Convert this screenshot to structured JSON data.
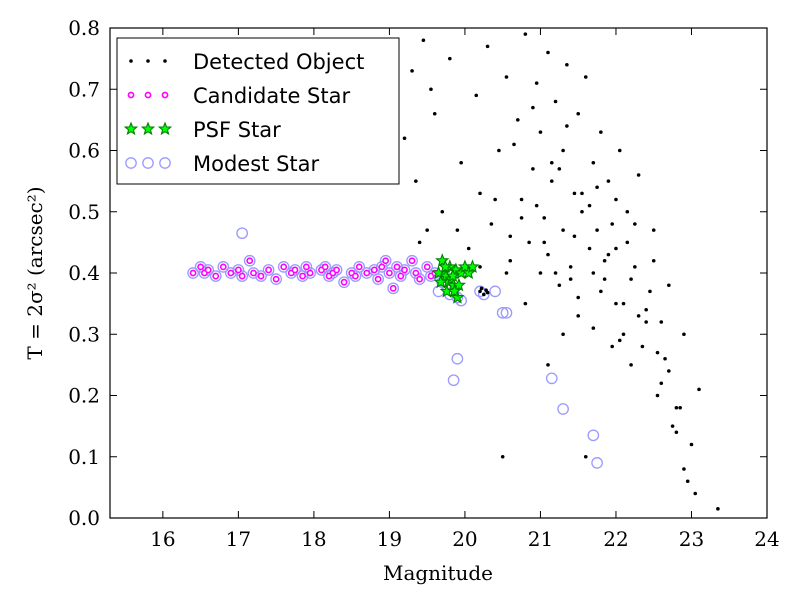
{
  "chart_data": {
    "type": "scatter",
    "xlabel": "Magnitude",
    "ylabel": "T = 2σ² (arcsec²)",
    "xlim": [
      15.3,
      24
    ],
    "ylim": [
      0.0,
      0.8
    ],
    "xticks": [
      "16",
      "17",
      "18",
      "19",
      "20",
      "21",
      "22",
      "23",
      "24"
    ],
    "yticks": [
      "0.0",
      "0.1",
      "0.2",
      "0.3",
      "0.4",
      "0.5",
      "0.6",
      "0.7",
      "0.8"
    ],
    "grid": false,
    "legend_position": "top-left",
    "colors": {
      "detected": "#000000",
      "candidate": "#ff00ff",
      "psf_edge": "#007f00",
      "psf_fill": "#00ff00",
      "modest": "#9999ff"
    },
    "series": [
      {
        "name": "Detected Object",
        "marker": "dot",
        "x": [
          19.2,
          19.3,
          19.35,
          19.45,
          19.5,
          19.55,
          19.6,
          19.7,
          19.8,
          19.95,
          20.05,
          20.15,
          20.2,
          20.3,
          20.35,
          20.45,
          20.55,
          20.6,
          20.7,
          20.75,
          20.8,
          20.85,
          20.9,
          20.95,
          21.0,
          21.0,
          21.05,
          21.1,
          21.1,
          21.15,
          21.2,
          21.25,
          21.3,
          21.3,
          21.35,
          21.4,
          21.45,
          21.5,
          21.5,
          21.55,
          21.6,
          21.65,
          21.7,
          21.7,
          21.75,
          21.8,
          21.85,
          21.9,
          21.95,
          22.0,
          22.05,
          22.1,
          22.15,
          22.2,
          22.25,
          22.3,
          22.4,
          22.5,
          22.6,
          22.7,
          22.8,
          22.9,
          23.0,
          23.1,
          23.35,
          20.4,
          20.6,
          21.3,
          20.8,
          19.4,
          19.9,
          20.2,
          20.5,
          21.1,
          21.6,
          22.0,
          22.35,
          22.55,
          22.75,
          22.95,
          21.85,
          22.1,
          22.6,
          21.55,
          21.95,
          21.25,
          20.95,
          21.45,
          21.75,
          22.2,
          22.45,
          22.65,
          22.85,
          23.05,
          20.65,
          20.9,
          21.15,
          21.35,
          21.65,
          21.9,
          22.15,
          22.4,
          22.7,
          22.9,
          21.2,
          21.5,
          21.8,
          22.05,
          22.3,
          22.55,
          22.8,
          20.55,
          20.75,
          21.05,
          21.4,
          21.7,
          22.0,
          22.25,
          22.5
        ],
        "y": [
          0.62,
          0.73,
          0.55,
          0.78,
          0.47,
          0.7,
          0.66,
          0.5,
          0.75,
          0.58,
          0.44,
          0.69,
          0.53,
          0.77,
          0.48,
          0.6,
          0.72,
          0.42,
          0.65,
          0.52,
          0.79,
          0.45,
          0.57,
          0.71,
          0.4,
          0.63,
          0.49,
          0.76,
          0.43,
          0.55,
          0.68,
          0.38,
          0.6,
          0.47,
          0.74,
          0.41,
          0.53,
          0.66,
          0.36,
          0.5,
          0.72,
          0.44,
          0.58,
          0.31,
          0.47,
          0.63,
          0.39,
          0.55,
          0.28,
          0.44,
          0.6,
          0.35,
          0.5,
          0.25,
          0.41,
          0.56,
          0.32,
          0.47,
          0.22,
          0.38,
          0.18,
          0.3,
          0.12,
          0.21,
          0.015,
          0.52,
          0.46,
          0.3,
          0.35,
          0.45,
          0.47,
          0.41,
          0.1,
          0.25,
          0.1,
          0.35,
          0.28,
          0.2,
          0.15,
          0.06,
          0.42,
          0.3,
          0.32,
          0.53,
          0.48,
          0.57,
          0.51,
          0.46,
          0.54,
          0.39,
          0.37,
          0.26,
          0.18,
          0.04,
          0.61,
          0.67,
          0.58,
          0.64,
          0.51,
          0.43,
          0.45,
          0.34,
          0.24,
          0.08,
          0.4,
          0.33,
          0.37,
          0.29,
          0.33,
          0.27,
          0.14,
          0.4,
          0.49,
          0.45,
          0.39,
          0.4,
          0.52,
          0.48,
          0.42
        ]
      },
      {
        "name": "Candidate Star",
        "marker": "circle-small",
        "x": [
          16.4,
          16.5,
          16.55,
          16.6,
          16.7,
          16.8,
          16.9,
          17.0,
          17.05,
          17.15,
          17.2,
          17.3,
          17.4,
          17.5,
          17.6,
          17.7,
          17.75,
          17.85,
          17.9,
          17.95,
          18.1,
          18.15,
          18.2,
          18.25,
          18.3,
          18.4,
          18.5,
          18.55,
          18.6,
          18.7,
          18.8,
          18.85,
          18.9,
          18.95,
          19.0,
          19.05,
          19.1,
          19.15,
          19.2,
          19.3,
          19.35,
          19.4,
          19.5,
          19.55,
          19.6
        ],
        "y": [
          0.4,
          0.41,
          0.4,
          0.405,
          0.395,
          0.41,
          0.4,
          0.405,
          0.395,
          0.42,
          0.4,
          0.395,
          0.405,
          0.39,
          0.41,
          0.4,
          0.405,
          0.395,
          0.41,
          0.4,
          0.405,
          0.41,
          0.395,
          0.4,
          0.405,
          0.385,
          0.4,
          0.395,
          0.41,
          0.4,
          0.405,
          0.39,
          0.41,
          0.42,
          0.4,
          0.375,
          0.41,
          0.395,
          0.405,
          0.42,
          0.4,
          0.39,
          0.41,
          0.395,
          0.4
        ]
      },
      {
        "name": "PSF Star",
        "marker": "star",
        "x": [
          19.7,
          19.72,
          19.75,
          19.78,
          19.8,
          19.82,
          19.85,
          19.88,
          19.9,
          19.95,
          20.0,
          20.05,
          20.1,
          19.65,
          19.68,
          19.76,
          19.84,
          19.92,
          19.74,
          19.86
        ],
        "y": [
          0.42,
          0.4,
          0.395,
          0.385,
          0.41,
          0.39,
          0.38,
          0.405,
          0.36,
          0.4,
          0.41,
          0.4,
          0.41,
          0.4,
          0.385,
          0.37,
          0.395,
          0.38,
          0.41,
          0.37
        ]
      },
      {
        "name": "Modest Star",
        "marker": "circle-large",
        "x": [
          16.4,
          16.5,
          16.55,
          16.6,
          16.7,
          16.8,
          16.9,
          17.0,
          17.05,
          17.15,
          17.2,
          17.3,
          17.4,
          17.5,
          17.6,
          17.7,
          17.75,
          17.85,
          17.9,
          17.95,
          18.1,
          18.15,
          18.2,
          18.25,
          18.3,
          18.4,
          18.5,
          18.55,
          18.6,
          18.7,
          18.8,
          18.85,
          18.9,
          18.95,
          19.0,
          19.05,
          19.1,
          19.15,
          19.2,
          19.3,
          19.35,
          19.4,
          19.5,
          19.55,
          19.6,
          19.65,
          19.7,
          19.75,
          19.8,
          19.85,
          19.9,
          19.95,
          20.2,
          20.25,
          20.4,
          20.5,
          20.55,
          17.05,
          19.85,
          19.9,
          21.15,
          21.3,
          21.7,
          21.75
        ],
        "y": [
          0.4,
          0.41,
          0.4,
          0.405,
          0.395,
          0.41,
          0.4,
          0.405,
          0.395,
          0.42,
          0.4,
          0.395,
          0.405,
          0.39,
          0.41,
          0.4,
          0.405,
          0.395,
          0.41,
          0.4,
          0.405,
          0.41,
          0.395,
          0.4,
          0.405,
          0.385,
          0.4,
          0.395,
          0.41,
          0.4,
          0.405,
          0.39,
          0.41,
          0.42,
          0.4,
          0.375,
          0.41,
          0.395,
          0.405,
          0.42,
          0.4,
          0.39,
          0.41,
          0.395,
          0.4,
          0.37,
          0.385,
          0.38,
          0.365,
          0.37,
          0.36,
          0.355,
          0.37,
          0.365,
          0.37,
          0.335,
          0.335,
          0.465,
          0.225,
          0.26,
          0.228,
          0.178,
          0.135,
          0.09
        ]
      },
      {
        "name": "",
        "marker": "dot",
        "x": [
          20.2,
          20.22,
          20.25,
          20.28,
          20.3
        ],
        "y": [
          0.37,
          0.375,
          0.365,
          0.372,
          0.368
        ]
      }
    ]
  }
}
